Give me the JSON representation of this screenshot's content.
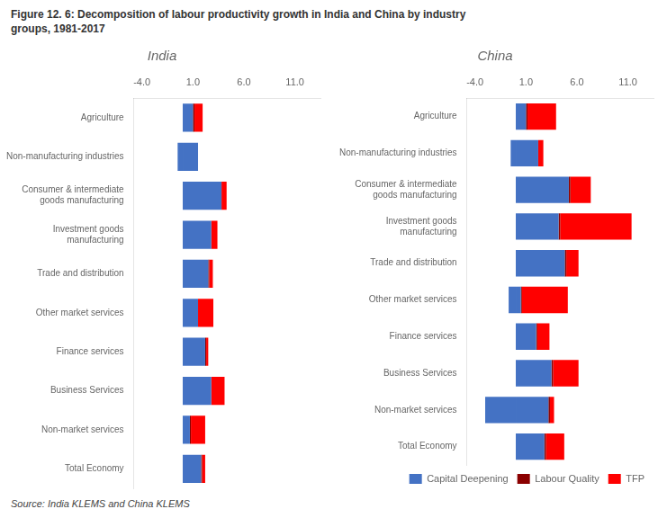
{
  "title": "Figure 12. 6: Decomposition of labour productivity growth in India and China by industry\ngroups, 1981-2017",
  "annotations": [
    "Source: India KLEMS and China KLEMS"
  ],
  "chart_data": [
    {
      "type": "bar",
      "title": "India",
      "orientation": "horizontal",
      "stacked": true,
      "grid": false,
      "categories": [
        "Agriculture",
        "Non-manufacturing industries",
        "Consumer & intermediate\ngoods manufacturing",
        "Investment goods\nmanufacturing",
        "Trade and distribution",
        "Other market services",
        "Finance services",
        "Business Services",
        "Non-market services",
        "Total Economy"
      ],
      "series": [
        {
          "name": "Capital Deepening",
          "color": "#4472C4",
          "values": [
            1.0,
            1.5,
            3.8,
            2.8,
            2.5,
            1.5,
            2.2,
            2.8,
            0.7,
            1.8
          ],
          "negative_values": [
            0.0,
            -0.5,
            0.0,
            0.0,
            0.0,
            0.0,
            0.0,
            0.0,
            0.0,
            0.0
          ]
        },
        {
          "name": "Labour Quality",
          "color": "#8B0000",
          "values": [
            0.15,
            0.0,
            0.0,
            0.0,
            0.1,
            0.0,
            0.1,
            0.0,
            0.1,
            0.1
          ]
        },
        {
          "name": "TFP",
          "color": "#FF0000",
          "values": [
            0.8,
            0.0,
            0.5,
            0.6,
            0.35,
            1.5,
            0.2,
            1.3,
            1.4,
            0.3
          ]
        }
      ],
      "xlim": [
        -4.8,
        13.5
      ],
      "xticks": [
        {
          "value": -4.0,
          "label": "-4.0"
        },
        {
          "value": 1.0,
          "label": "1.0"
        },
        {
          "value": 6.0,
          "label": "6.0"
        },
        {
          "value": 11.0,
          "label": "11.0"
        }
      ]
    },
    {
      "type": "bar",
      "title": "China",
      "orientation": "horizontal",
      "stacked": true,
      "grid": false,
      "legend": "lower right",
      "categories": [
        "Agriculture",
        "Non-manufacturing industries",
        "Consumer & intermediate\ngoods manufacturing",
        "Investment goods\nmanufacturing",
        "Trade and distribution",
        "Other market services",
        "Finance services",
        "Business Services",
        "Non-market services",
        "Total Economy"
      ],
      "series": [
        {
          "name": "Capital Deepening",
          "color": "#4472C4",
          "values": [
            1.0,
            2.2,
            5.2,
            4.2,
            4.8,
            0.5,
            2.0,
            3.5,
            3.2,
            2.8
          ],
          "negative_values": [
            0.0,
            -0.5,
            0.0,
            0.0,
            0.0,
            -0.7,
            0.0,
            0.0,
            -3.0,
            0.0
          ]
        },
        {
          "name": "Labour Quality",
          "color": "#8B0000",
          "values": [
            0.15,
            0.0,
            0.15,
            0.15,
            0.15,
            0.1,
            0.1,
            0.15,
            0.15,
            0.15
          ]
        },
        {
          "name": "TFP",
          "color": "#FF0000",
          "values": [
            2.8,
            0.5,
            2.0,
            7.0,
            1.2,
            4.5,
            1.2,
            2.5,
            0.4,
            1.8
          ]
        }
      ],
      "xlim": [
        -4.8,
        13.5
      ],
      "xticks": [
        {
          "value": -4.0,
          "label": "-4.0"
        },
        {
          "value": 1.0,
          "label": "1.0"
        },
        {
          "value": 6.0,
          "label": "6.0"
        },
        {
          "value": 11.0,
          "label": "11.0"
        }
      ]
    }
  ]
}
